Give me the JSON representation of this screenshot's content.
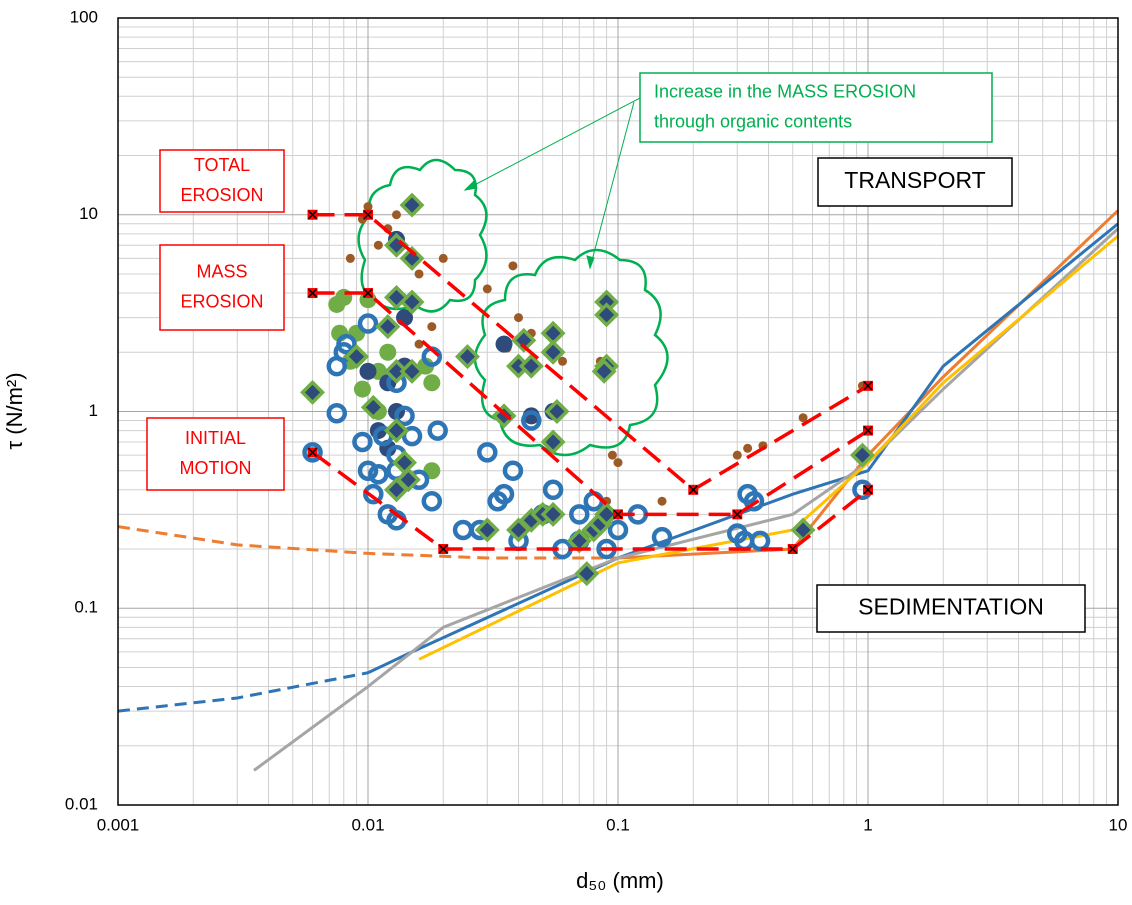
{
  "chart_data": {
    "type": "scatter",
    "x_label": "d₅₀ (mm)",
    "y_label": "τ (N/m²)",
    "xlog": true,
    "ylog": true,
    "grid": true,
    "xlim": [
      0.001,
      10
    ],
    "ylim": [
      0.01,
      100
    ],
    "xticks": [
      0.001,
      0.01,
      0.1,
      1,
      10
    ],
    "yticks": [
      0.01,
      0.1,
      1,
      10,
      100
    ],
    "annotations": [
      {
        "lines": [
          "TOTAL",
          "EROSION"
        ],
        "color": "#ff0000"
      },
      {
        "lines": [
          "MASS",
          "EROSION"
        ],
        "color": "#ff0000"
      },
      {
        "lines": [
          "INITIAL",
          "MOTION"
        ],
        "color": "#ff0000"
      },
      {
        "lines": [
          "TRANSPORT"
        ],
        "color": "#000000"
      },
      {
        "lines": [
          "SEDIMENTATION"
        ],
        "color": "#000000"
      },
      {
        "lines": [
          "Increase in the MASS EROSION",
          "through organic contents"
        ],
        "color": "#00b050"
      }
    ],
    "series": [
      {
        "kind": "line",
        "color": "#ed7d31",
        "dash": true,
        "x": [
          0.001,
          0.003,
          0.01,
          0.03,
          0.1
        ],
        "values": [
          0.26,
          0.21,
          0.19,
          0.18,
          0.18
        ]
      },
      {
        "kind": "line",
        "color": "#ed7d31",
        "x": [
          0.1,
          0.5,
          1,
          2,
          10
        ],
        "values": [
          0.18,
          0.2,
          0.6,
          1.5,
          10.5
        ]
      },
      {
        "kind": "line",
        "color": "#2e75b6",
        "dash": true,
        "x": [
          0.001,
          0.003,
          0.01
        ],
        "values": [
          0.03,
          0.035,
          0.047
        ]
      },
      {
        "kind": "line",
        "color": "#2e75b6",
        "x": [
          0.01,
          0.015,
          0.1,
          0.5,
          1,
          2,
          10
        ],
        "values": [
          0.047,
          0.06,
          0.18,
          0.38,
          0.5,
          1.7,
          9
        ]
      },
      {
        "kind": "line",
        "color": "#a5a5a5",
        "x": [
          0.0035,
          0.01,
          0.02,
          0.1,
          0.5,
          1,
          2,
          10
        ],
        "values": [
          0.015,
          0.04,
          0.08,
          0.18,
          0.3,
          0.55,
          1.3,
          8.5
        ]
      },
      {
        "kind": "line",
        "color": "#ffc000",
        "x": [
          0.016,
          0.1,
          0.5,
          1,
          2,
          10
        ],
        "values": [
          0.055,
          0.17,
          0.25,
          0.55,
          1.4,
          7.8
        ]
      },
      {
        "kind": "scatter",
        "marker": "dot",
        "color": "#9c5b26",
        "x": [
          0.01,
          0.0095,
          0.011,
          0.012,
          0.0085,
          0.016,
          0.02,
          0.013,
          0.03,
          0.038,
          0.04,
          0.036,
          0.045,
          0.06,
          0.085,
          0.095,
          0.1,
          0.09,
          0.15,
          0.3,
          0.33,
          0.38,
          0.55,
          0.95,
          0.018,
          0.016
        ],
        "values": [
          11,
          9.5,
          7,
          8.5,
          6,
          5,
          6,
          10,
          4.2,
          5.5,
          3,
          2.1,
          2.5,
          1.8,
          1.8,
          0.6,
          0.55,
          0.35,
          0.35,
          0.6,
          0.65,
          0.67,
          0.93,
          1.35,
          2.7,
          2.2
        ]
      },
      {
        "kind": "scatter",
        "marker": "bigdot",
        "color": "#70ad47",
        "x": [
          0.008,
          0.0075,
          0.009,
          0.0085,
          0.0077,
          0.01,
          0.0095,
          0.011,
          0.018,
          0.017,
          0.018,
          0.012,
          0.011
        ],
        "values": [
          3.8,
          3.5,
          2.5,
          1.8,
          2.5,
          3.7,
          1.3,
          1.6,
          1.4,
          1.7,
          0.5,
          2,
          1
        ]
      },
      {
        "kind": "scatter",
        "marker": "bigdot",
        "color": "#2f4b7c",
        "x": [
          0.013,
          0.014,
          0.01,
          0.012,
          0.014,
          0.013,
          0.011,
          0.035,
          0.045,
          0.055,
          0.012
        ],
        "values": [
          7.5,
          3,
          1.6,
          1.4,
          1.7,
          1,
          0.8,
          2.2,
          0.95,
          1,
          0.65
        ]
      },
      {
        "kind": "scatter",
        "marker": "ring",
        "color": "#2e75b6",
        "x": [
          0.006,
          0.0075,
          0.0075,
          0.008,
          0.0082,
          0.01,
          0.0095,
          0.01,
          0.011,
          0.0105,
          0.012,
          0.013,
          0.013,
          0.013,
          0.014,
          0.015,
          0.016,
          0.018,
          0.019,
          0.018,
          0.024,
          0.028,
          0.03,
          0.033,
          0.035,
          0.038,
          0.04,
          0.045,
          0.05,
          0.055,
          0.06,
          0.07,
          0.09,
          0.1,
          0.15,
          0.3,
          0.33,
          0.35,
          0.32,
          0.37,
          0.95,
          0.12,
          0.07,
          0.08,
          0.013,
          0.0115
        ],
        "values": [
          0.62,
          1.7,
          0.98,
          2,
          2.2,
          2.8,
          0.7,
          0.5,
          0.48,
          0.38,
          0.3,
          0.28,
          0.5,
          1.4,
          0.95,
          0.75,
          0.45,
          1.9,
          0.8,
          0.35,
          0.25,
          0.25,
          0.62,
          0.35,
          0.38,
          0.5,
          0.22,
          0.9,
          0.3,
          0.4,
          0.2,
          0.22,
          0.2,
          0.25,
          0.23,
          0.24,
          0.38,
          0.35,
          0.22,
          0.22,
          0.4,
          0.3,
          0.3,
          0.35,
          0.6,
          0.75
        ]
      },
      {
        "kind": "scatter",
        "marker": "diamond",
        "color": "#2f4b7c",
        "x": [
          0.015,
          0.013,
          0.015,
          0.006,
          0.009,
          0.012,
          0.013,
          0.015,
          0.0105,
          0.013,
          0.015,
          0.013,
          0.014,
          0.013,
          0.0145,
          0.025,
          0.035,
          0.04,
          0.042,
          0.045,
          0.055,
          0.055,
          0.057,
          0.055,
          0.09,
          0.09,
          0.09,
          0.088,
          0.03,
          0.04,
          0.045,
          0.05,
          0.055,
          0.07,
          0.075,
          0.08,
          0.085,
          0.09,
          0.55,
          0.95
        ],
        "values": [
          11.2,
          7,
          6,
          1.25,
          1.9,
          2.7,
          3.8,
          3.6,
          1.05,
          1.6,
          1.6,
          0.8,
          0.55,
          0.4,
          0.45,
          1.9,
          0.95,
          1.7,
          2.3,
          1.7,
          2.5,
          2,
          1,
          0.7,
          3.6,
          3.1,
          1.7,
          1.6,
          0.25,
          0.25,
          0.28,
          0.3,
          0.3,
          0.22,
          0.15,
          0.25,
          0.27,
          0.3,
          0.25,
          0.6
        ]
      },
      {
        "kind": "line",
        "marker": "cross",
        "color": "#ff0000",
        "dash": true,
        "x": [
          0.006,
          0.01,
          0.2,
          1
        ],
        "values": [
          10,
          10,
          0.4,
          1.35
        ]
      },
      {
        "kind": "line",
        "marker": "cross",
        "color": "#ff0000",
        "dash": true,
        "x": [
          0.006,
          0.01,
          0.1,
          0.3,
          1
        ],
        "values": [
          4,
          4,
          0.3,
          0.3,
          0.8
        ]
      },
      {
        "kind": "line",
        "marker": "cross",
        "color": "#ff0000",
        "dash": true,
        "x": [
          0.006,
          0.02,
          0.5,
          1
        ],
        "values": [
          0.62,
          0.2,
          0.2,
          0.4
        ]
      }
    ]
  }
}
